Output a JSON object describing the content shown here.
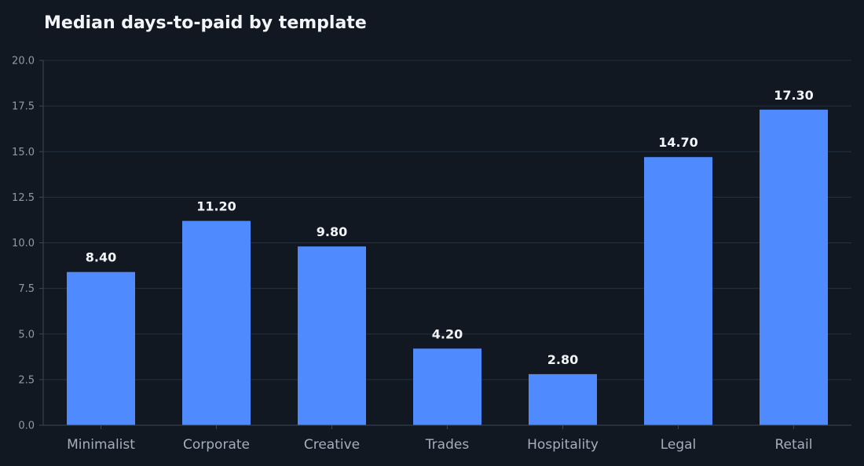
{
  "chart_data": {
    "type": "bar",
    "title": "Median days-to-paid by template",
    "xlabel": "",
    "ylabel": "",
    "categories": [
      "Minimalist",
      "Corporate",
      "Creative",
      "Trades",
      "Hospitality",
      "Legal",
      "Retail"
    ],
    "values": [
      8.4,
      11.2,
      9.8,
      4.2,
      2.8,
      14.7,
      17.3
    ],
    "data_labels": [
      "8.40",
      "11.20",
      "9.80",
      "4.20",
      "2.80",
      "14.70",
      "17.30"
    ],
    "ylim": [
      0,
      20
    ],
    "yticks": [
      "0.0",
      "2.5",
      "5.0",
      "7.5",
      "10.0",
      "12.5",
      "15.0",
      "17.5",
      "20.0"
    ],
    "grid": true,
    "legend": "none"
  },
  "colors": {
    "background": "#111821",
    "bar": "#4f8bff",
    "grid": "#243140",
    "axis": "#3a4756",
    "tick_text": "#8f9aa8",
    "category_text": "#a4afbd",
    "title_text": "#f2f5f8",
    "data_label_text": "#f2f5f8"
  }
}
